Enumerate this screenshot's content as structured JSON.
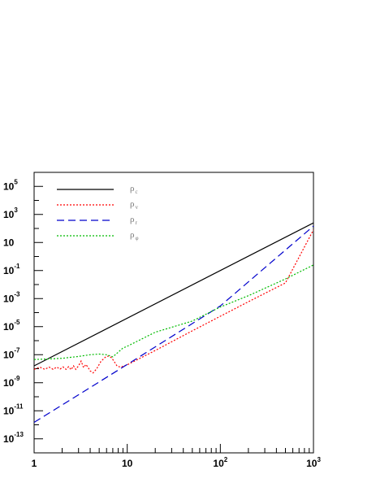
{
  "chart_data": {
    "type": "line",
    "title": "",
    "xlabel": "",
    "ylabel": "",
    "x_scale": "log",
    "y_scale": "log",
    "xlim": [
      1,
      1000
    ],
    "ylim": [
      1e-14,
      1000000.0
    ],
    "x_ticks": [
      {
        "value": 1,
        "base": "1",
        "exp": ""
      },
      {
        "value": 10,
        "base": "10",
        "exp": ""
      },
      {
        "value": 100,
        "base": "10",
        "exp": "2"
      },
      {
        "value": 1000,
        "base": "10",
        "exp": "3"
      }
    ],
    "y_ticks": [
      {
        "value": 100000.0,
        "base": "10",
        "exp": "5"
      },
      {
        "value": 1000.0,
        "base": "10",
        "exp": "3"
      },
      {
        "value": 10,
        "base": "10",
        "exp": ""
      },
      {
        "value": 0.1,
        "base": "10",
        "exp": "-1"
      },
      {
        "value": 0.001,
        "base": "10",
        "exp": "-3"
      },
      {
        "value": 1e-05,
        "base": "10",
        "exp": "-5"
      },
      {
        "value": 1e-07,
        "base": "10",
        "exp": "-7"
      },
      {
        "value": 1e-09,
        "base": "10",
        "exp": "-9"
      },
      {
        "value": 1e-11,
        "base": "10",
        "exp": "-11"
      },
      {
        "value": 1e-13,
        "base": "10",
        "exp": "-13"
      }
    ],
    "legend": {
      "position": "top-left"
    },
    "grid": false,
    "series": [
      {
        "name": "ρ",
        "subscript": "c",
        "color": "#000000",
        "dash": "solid",
        "x": [
          1,
          1000
        ],
        "y": [
          1.6e-08,
          250.0
        ]
      },
      {
        "name": "ρ",
        "subscript": "v",
        "color": "#ff0000",
        "dash": "dotted",
        "x": [
          1,
          1.15,
          1.3,
          1.45,
          1.6,
          1.75,
          1.9,
          2.05,
          2.2,
          2.35,
          2.5,
          2.65,
          2.8,
          3.0,
          3.2,
          3.4,
          3.6,
          3.8,
          4.0,
          4.3,
          4.7,
          5.2,
          5.8,
          6.3,
          6.8,
          7.3,
          7.8,
          8.5,
          10,
          20,
          50,
          100,
          200,
          500,
          1000
        ],
        "y": [
          9e-09,
          1.3e-08,
          9e-09,
          1.3e-08,
          9e-09,
          1.3e-08,
          9.5e-09,
          1.35e-08,
          9e-09,
          1.4e-08,
          8.5e-09,
          1.6e-08,
          9e-09,
          1.6e-08,
          3.5e-08,
          1.2e-08,
          2e-08,
          1.2e-08,
          7e-09,
          5e-09,
          1e-08,
          3.2e-08,
          6.5e-08,
          8e-08,
          6e-08,
          3e-08,
          1.5e-08,
          1.3e-08,
          1.9e-08,
          2e-07,
          5e-06,
          5.5e-05,
          0.0006,
          0.013,
          80.0
        ]
      },
      {
        "name": "ρ",
        "subscript": "r",
        "color": "#0000cc",
        "dash": "dashed",
        "x": [
          1,
          10,
          100,
          1000
        ],
        "y": [
          1.5e-12,
          2e-08,
          0.0003,
          150.0
        ]
      },
      {
        "name": "ρ",
        "subscript": "φ",
        "color": "#00bb00",
        "dash": "dotted",
        "x": [
          1,
          1.5,
          2,
          3,
          4,
          5,
          6,
          7,
          8,
          9,
          10,
          20,
          50,
          100,
          200,
          500,
          1000
        ],
        "y": [
          4.5e-08,
          5e-08,
          5.5e-08,
          7.5e-08,
          1e-07,
          1.1e-07,
          1e-07,
          7e-08,
          1.5e-07,
          3e-07,
          4e-07,
          4e-06,
          2.5e-05,
          0.00025,
          0.0016,
          0.025,
          0.25
        ]
      }
    ]
  }
}
